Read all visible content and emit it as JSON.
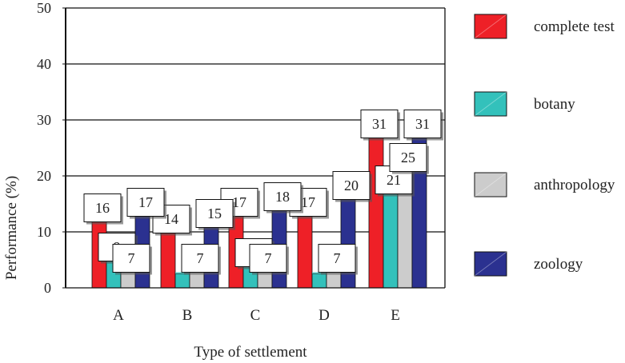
{
  "chart_data": {
    "type": "bar",
    "xlabel": "Type of settlement",
    "ylabel": "Performance (%)",
    "ylim": [
      0,
      50
    ],
    "yticks": [
      0,
      10,
      20,
      30,
      40,
      50
    ],
    "grid": true,
    "legend_position": "right",
    "categories": [
      "A",
      "B",
      "C",
      "D",
      "E"
    ],
    "series": [
      {
        "name": "complete test",
        "color": "#ee2027",
        "values": [
          16,
          14,
          17,
          17,
          31
        ],
        "labels": [
          "16",
          "14",
          "17",
          "17",
          "31"
        ]
      },
      {
        "name": "botany",
        "color": "#33c1bb",
        "values": [
          9,
          2.5,
          8,
          2.5,
          21
        ],
        "labels": [
          "9",
          "",
          "8",
          "",
          "21"
        ]
      },
      {
        "name": "anthropology",
        "color": "#cccccc",
        "values": [
          7,
          7,
          7,
          7,
          25
        ],
        "labels": [
          "7",
          "7",
          "7",
          "7",
          "25"
        ]
      },
      {
        "name": "zoology",
        "color": "#2b3190",
        "values": [
          17,
          15,
          18,
          20,
          31
        ],
        "labels": [
          "17",
          "15",
          "18",
          "20",
          "31"
        ]
      }
    ]
  }
}
